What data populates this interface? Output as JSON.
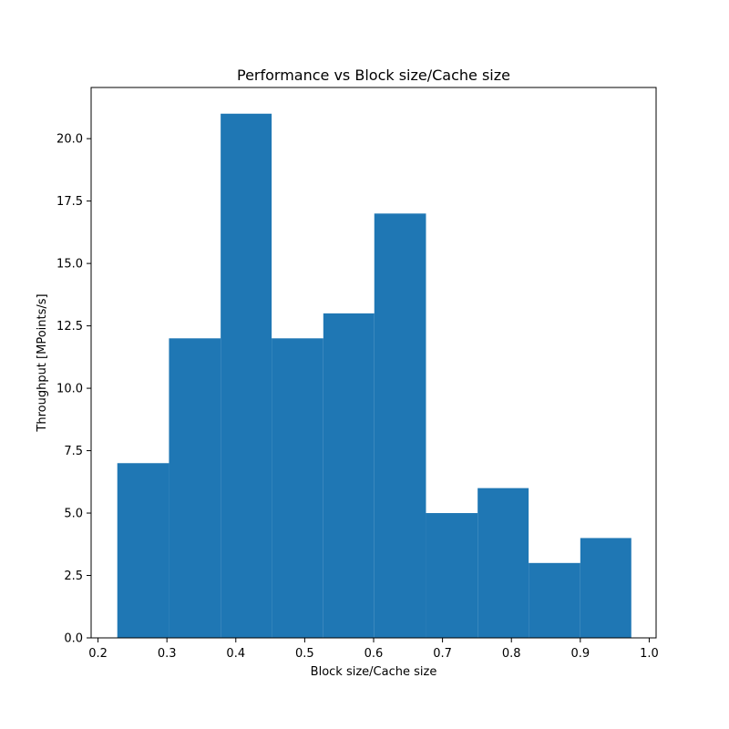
{
  "chart_data": {
    "type": "bar",
    "title": "Performance vs Block size/Cache size",
    "xlabel": "Block size/Cache size",
    "ylabel": "Throughput [MPoints/s]",
    "xlim": [
      0.19,
      1.01
    ],
    "ylim": [
      0,
      22.05
    ],
    "xticks": [
      0.2,
      0.3,
      0.4,
      0.5,
      0.6,
      0.7,
      0.8,
      0.9,
      1.0
    ],
    "xtick_labels": [
      "0.2",
      "0.3",
      "0.4",
      "0.5",
      "0.6",
      "0.7",
      "0.8",
      "0.9",
      "1.0"
    ],
    "yticks": [
      0,
      2.5,
      5,
      7.5,
      10,
      12.5,
      15,
      17.5,
      20
    ],
    "ytick_labels": [
      "0.0",
      "2.5",
      "5.0",
      "7.5",
      "10.0",
      "12.5",
      "15.0",
      "17.5",
      "20.0"
    ],
    "bin_edges": [
      0.228,
      0.303,
      0.378,
      0.452,
      0.527,
      0.601,
      0.676,
      0.751,
      0.825,
      0.9,
      0.974
    ],
    "values": [
      7,
      12,
      21,
      12,
      13,
      17,
      5,
      6,
      3,
      4
    ],
    "bar_color": "#1f77b4",
    "grid": false,
    "legend": "none"
  }
}
